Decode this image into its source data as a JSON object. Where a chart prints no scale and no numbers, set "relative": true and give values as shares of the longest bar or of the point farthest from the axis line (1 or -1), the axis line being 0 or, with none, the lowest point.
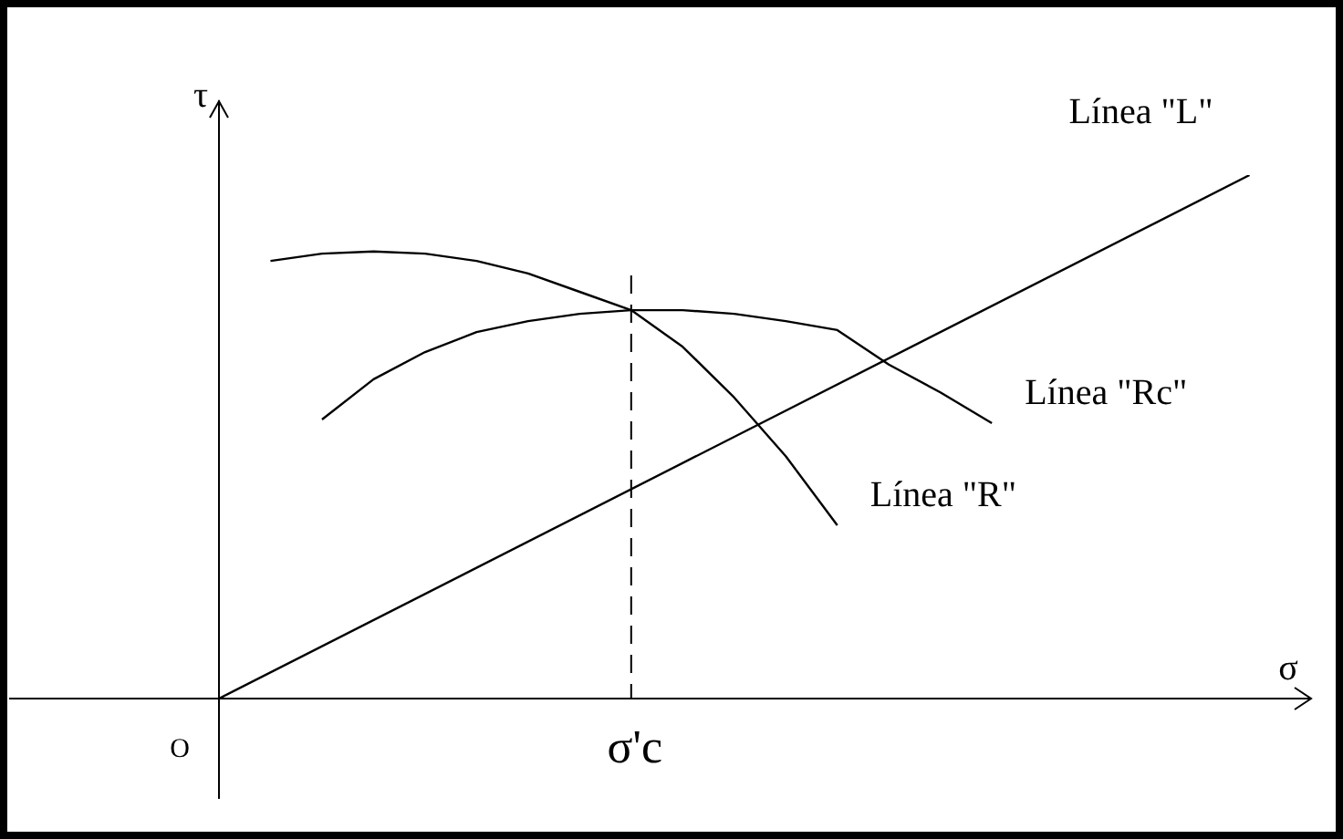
{
  "chart_data": {
    "type": "line",
    "relative": true,
    "xlabel": "σ",
    "ylabel": "τ",
    "legend": false,
    "marker": "none",
    "line_style": "solid",
    "categories": [
      null,
      null,
      null,
      null,
      null,
      null,
      null,
      null,
      null,
      null,
      null,
      null,
      null,
      null,
      null,
      null,
      null,
      null,
      null,
      null,
      null,
      null
    ],
    "annotations": [
      "O",
      "σ'c"
    ],
    "series": [
      {
        "name": "Línea \"L\"",
        "color": "#000000",
        "values": [
          0,
          null,
          null,
          null,
          null,
          null,
          null,
          null,
          null,
          null,
          null,
          null,
          null,
          null,
          null,
          null,
          null,
          null,
          null,
          null,
          1,
          null
        ]
      },
      {
        "name": "Línea \"R\"",
        "color": "#000000",
        "values": [
          null,
          0.836,
          0.85,
          0.854,
          0.85,
          0.836,
          0.812,
          0.777,
          0.742,
          0.672,
          0.575,
          0.463,
          0.331,
          null,
          null,
          null,
          null,
          null,
          null,
          null,
          null,
          null
        ]
      },
      {
        "name": "Línea \"Rc\"",
        "color": "#000000",
        "values": [
          null,
          null,
          0.533,
          0.61,
          0.662,
          0.7,
          0.721,
          0.735,
          0.742,
          0.742,
          0.735,
          0.721,
          0.704,
          0.638,
          0.585,
          0.526,
          null,
          null,
          null,
          null,
          null,
          null
        ]
      }
    ]
  }
}
